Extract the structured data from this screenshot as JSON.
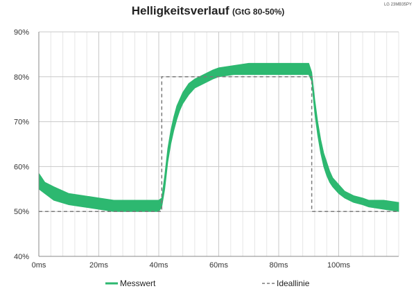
{
  "chart_data": {
    "type": "line",
    "title": "Helligkeitsverlauf",
    "subtitle": "(GtG 80-50%)",
    "device_label": "LG 23MB35PY",
    "x_tick_labels": [
      "0ms",
      "20ms",
      "40ms",
      "60ms",
      "80ms",
      "100ms"
    ],
    "y_tick_labels": [
      "40%",
      "50%",
      "60%",
      "70%",
      "80%",
      "90%"
    ],
    "xlim": [
      0,
      120
    ],
    "ylim": [
      40,
      90
    ],
    "x_ticks": [
      0,
      20,
      40,
      60,
      80,
      100
    ],
    "y_ticks": [
      40,
      50,
      60,
      70,
      80,
      90
    ],
    "grid": true,
    "legend_position": "bottom",
    "series": [
      {
        "name": "Messwert",
        "color": "#2db870",
        "style": "band",
        "x": [
          0,
          2,
          5,
          10,
          15,
          20,
          25,
          30,
          35,
          38,
          40,
          41,
          42,
          43,
          44,
          45,
          46,
          47,
          48,
          49,
          50,
          52,
          55,
          58,
          60,
          65,
          70,
          75,
          80,
          85,
          88,
          90,
          91,
          92,
          93,
          94,
          95,
          96,
          97,
          98,
          100,
          102,
          105,
          108,
          110,
          115,
          120
        ],
        "upper": [
          58.5,
          56.5,
          55.5,
          54.0,
          53.5,
          53.0,
          52.5,
          52.5,
          52.5,
          52.5,
          52.5,
          53.0,
          58.0,
          64.0,
          68.0,
          71.0,
          73.5,
          75.0,
          76.5,
          77.5,
          78.5,
          79.5,
          80.5,
          81.5,
          82.0,
          82.5,
          83.0,
          83.0,
          83.0,
          83.0,
          83.0,
          83.0,
          81.0,
          75.0,
          70.0,
          66.0,
          63.0,
          61.0,
          59.0,
          57.5,
          56.0,
          54.5,
          53.5,
          53.0,
          52.5,
          52.5,
          52.0
        ],
        "lower": [
          55.0,
          54.0,
          52.5,
          51.5,
          51.0,
          50.5,
          50.0,
          50.0,
          50.0,
          50.0,
          50.0,
          51.0,
          55.0,
          61.0,
          65.0,
          68.0,
          70.5,
          72.5,
          74.0,
          75.0,
          76.0,
          77.5,
          78.5,
          79.5,
          80.0,
          80.5,
          80.5,
          80.5,
          80.5,
          80.5,
          80.5,
          80.5,
          79.0,
          72.0,
          67.0,
          63.0,
          60.0,
          58.0,
          56.5,
          55.5,
          54.0,
          53.0,
          52.0,
          51.5,
          51.0,
          50.5,
          50.0
        ]
      },
      {
        "name": "Ideallinie",
        "color": "#7a7a7a",
        "style": "dashed",
        "x": [
          0,
          41,
          41,
          91,
          91,
          120
        ],
        "y": [
          50,
          50,
          80,
          80,
          50,
          50
        ]
      }
    ]
  }
}
